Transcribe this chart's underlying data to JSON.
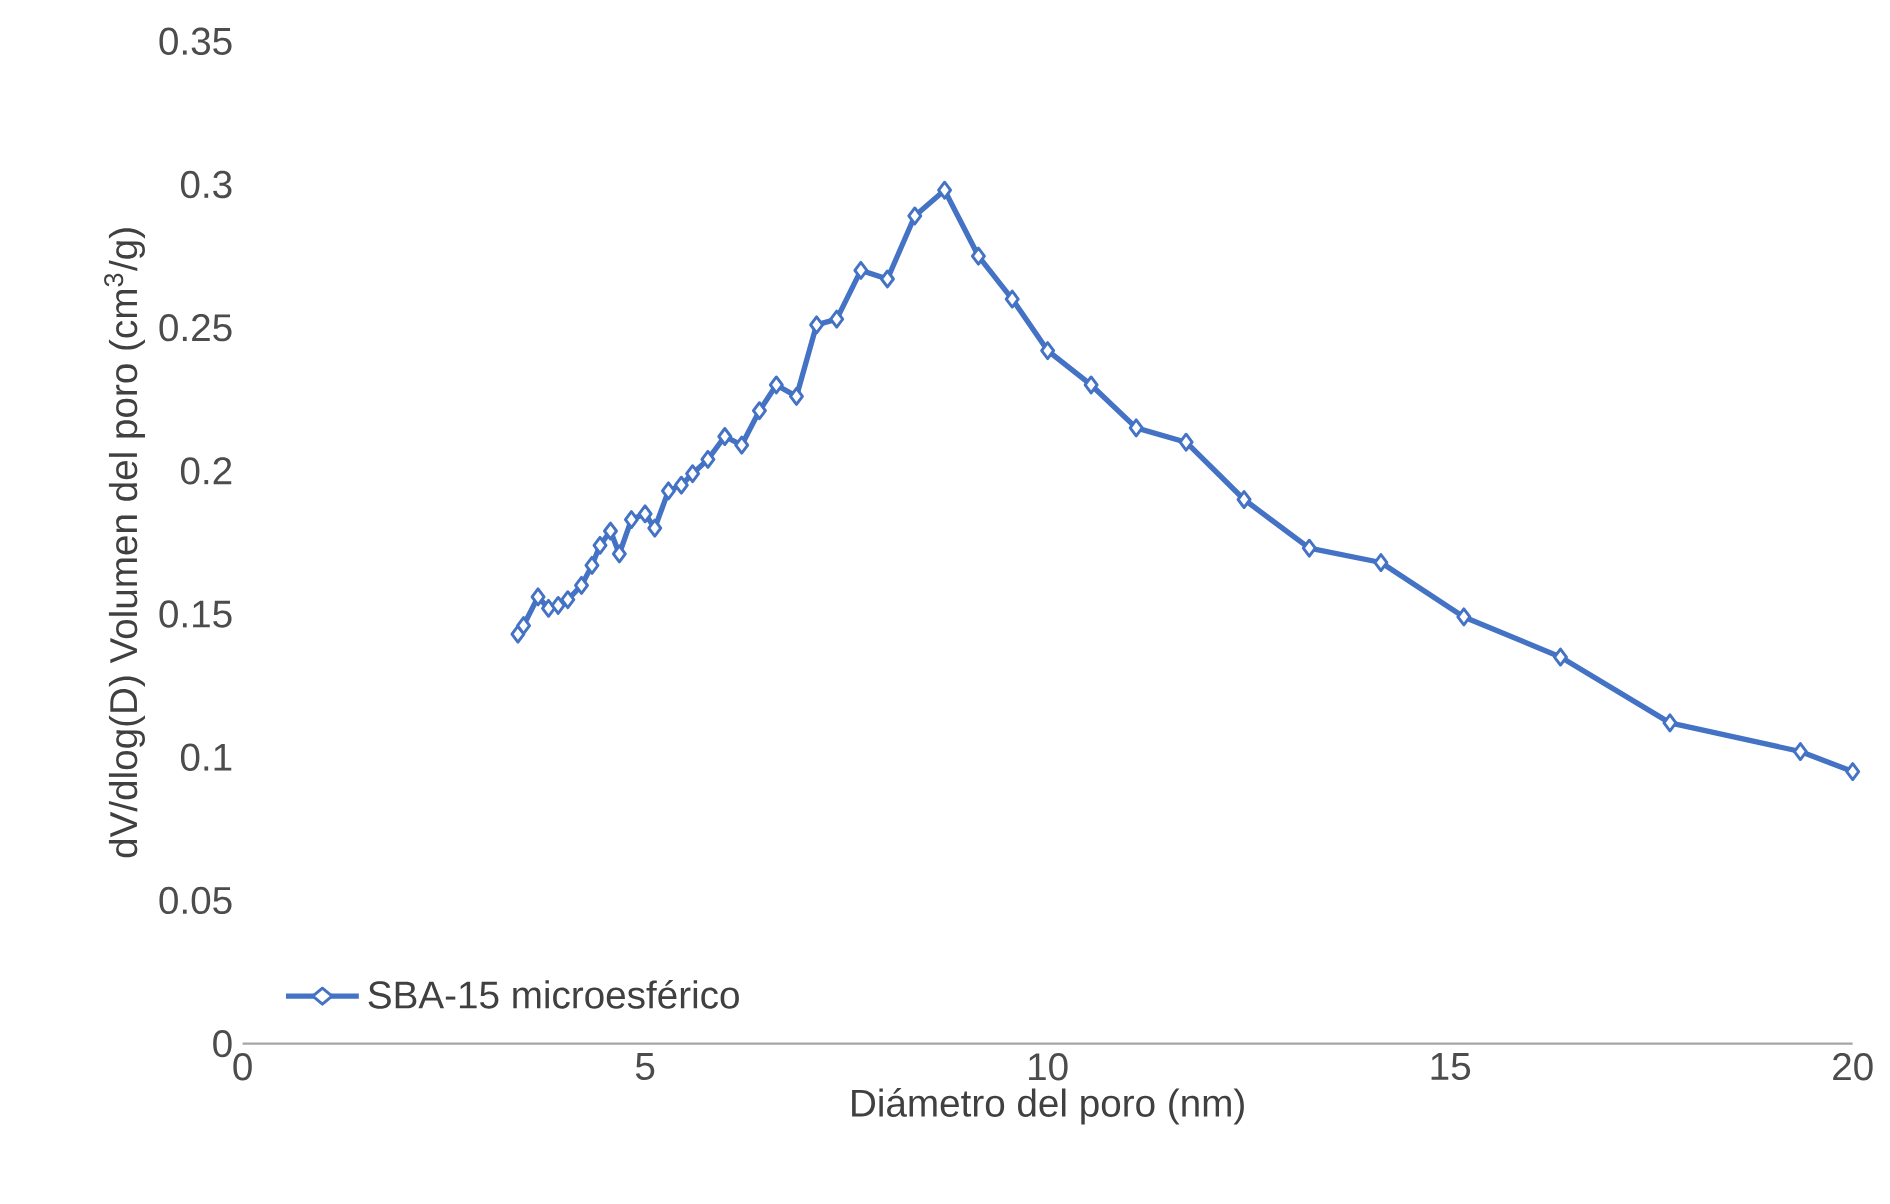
{
  "chart_data": {
    "type": "line",
    "xlabel": "Diámetro del poro (nm)",
    "ylabel": "dV/dlog(D)  Volumen del poro (cm$^{3}$/g)",
    "xlim": [
      0,
      20
    ],
    "xticks": [
      0,
      5,
      10,
      15,
      20
    ],
    "ylim": [
      0,
      0.35
    ],
    "yticks": [
      0,
      0.05,
      0.1,
      0.15,
      0.2,
      0.25,
      0.3,
      0.35
    ],
    "grid": false,
    "legend": "bottom left",
    "marker": "diamond",
    "line_style": "solid",
    "series": [
      {
        "name": "SBA-15 microesférico",
        "color": "#4472c4",
        "x": [
          3.42,
          3.49,
          3.67,
          3.8,
          3.92,
          4.04,
          4.21,
          4.34,
          4.44,
          4.57,
          4.68,
          4.83,
          5.0,
          5.12,
          5.29,
          5.45,
          5.59,
          5.78,
          5.99,
          6.2,
          6.42,
          6.63,
          6.88,
          7.13,
          7.38,
          7.68,
          8.01,
          8.35,
          8.72,
          9.14,
          9.56,
          10.0,
          10.54,
          11.1,
          11.72,
          12.44,
          13.25,
          14.14,
          15.17,
          16.37,
          17.73,
          19.35,
          20.0
        ],
        "values": [
          0.143,
          0.146,
          0.156,
          0.152,
          0.153,
          0.155,
          0.16,
          0.167,
          0.174,
          0.179,
          0.171,
          0.183,
          0.185,
          0.18,
          0.193,
          0.195,
          0.199,
          0.204,
          0.212,
          0.209,
          0.221,
          0.23,
          0.226,
          0.251,
          0.253,
          0.27,
          0.267,
          0.289,
          0.298,
          0.275,
          0.26,
          0.242,
          0.23,
          0.215,
          0.21,
          0.19,
          0.173,
          0.168,
          0.149,
          0.135,
          0.112,
          0.102,
          0.095
        ]
      }
    ]
  }
}
